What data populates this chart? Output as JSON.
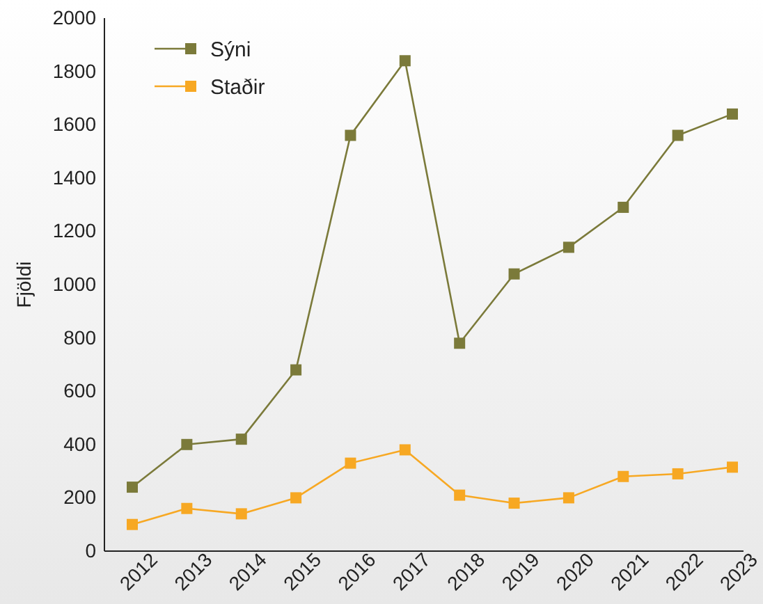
{
  "chart_data": {
    "type": "line",
    "ylabel": "Fjöldi",
    "categories": [
      "2012",
      "2013",
      "2014",
      "2015",
      "2016",
      "2017",
      "2018",
      "2019",
      "2020",
      "2021",
      "2022",
      "2023"
    ],
    "series": [
      {
        "name": "Sýni",
        "color": "#7b7a3a",
        "values": [
          240,
          400,
          420,
          680,
          1560,
          1840,
          780,
          1040,
          1140,
          1290,
          1560,
          1640
        ]
      },
      {
        "name": "Staðir",
        "color": "#f7a823",
        "values": [
          100,
          160,
          140,
          200,
          330,
          380,
          210,
          180,
          200,
          280,
          290,
          315
        ]
      }
    ],
    "ylim": [
      0,
      2000
    ],
    "yticks": [
      0,
      200,
      400,
      600,
      800,
      1000,
      1200,
      1400,
      1600,
      1800,
      2000
    ],
    "grid": false,
    "legend": "top left",
    "marker": "square",
    "line_style": "solid"
  }
}
